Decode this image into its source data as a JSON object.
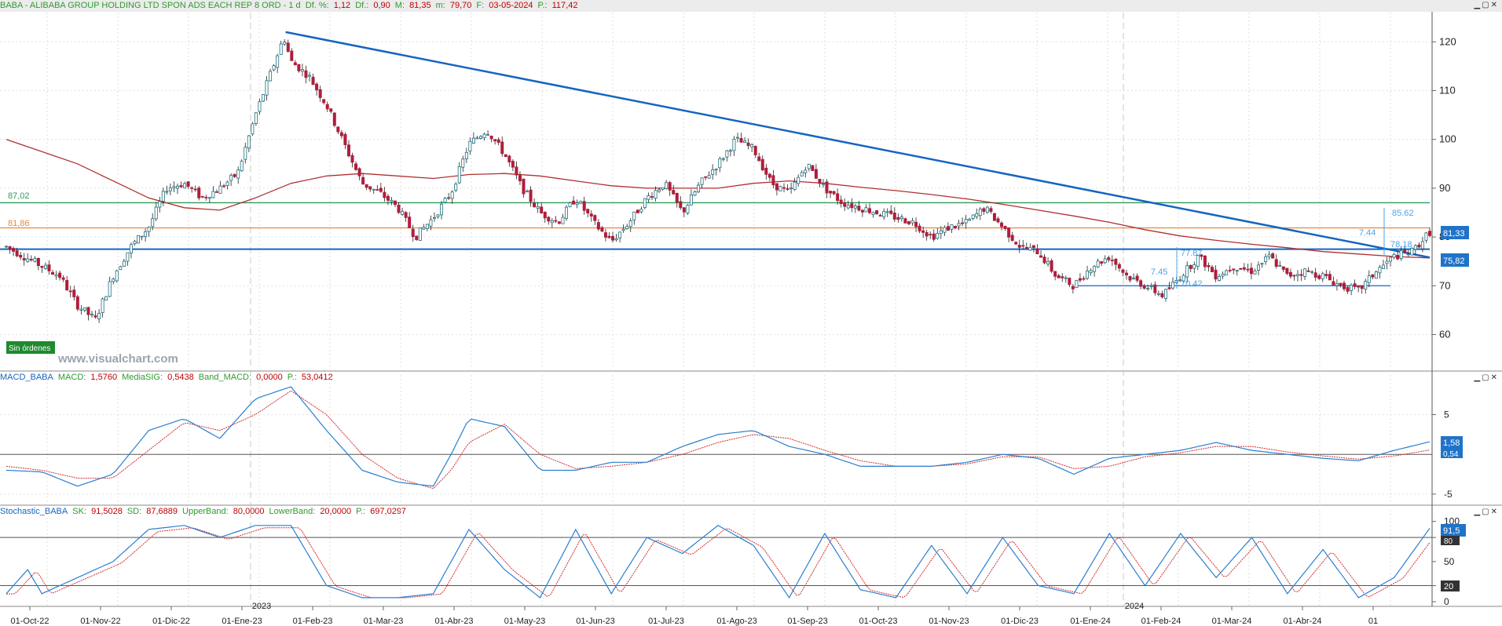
{
  "main_panel": {
    "header": {
      "symbol": "BABA - ALIBABA GROUP HOLDING LTD SPON ADS EACH REP 8 ORD - 1 d",
      "items": [
        {
          "label": "Df. %:",
          "value": "1,12"
        },
        {
          "label": "Df.:",
          "value": "0,90"
        },
        {
          "label": "M:",
          "value": "81,35"
        },
        {
          "label": "m:",
          "value": "79,70"
        },
        {
          "label": "F:",
          "value": "03-05-2024"
        },
        {
          "label": "P.:",
          "value": "117,42"
        }
      ]
    },
    "orders_badge": "Sin órdenes",
    "watermark": "www.visualchart.com",
    "y_ticks": [
      "120",
      "110",
      "100",
      "90",
      "80",
      "70",
      "60"
    ],
    "levels": {
      "green": "87,02",
      "orange": "81,86"
    },
    "price_tags": {
      "last": "81,33",
      "blue_line": "75,82"
    },
    "annotations": [
      "85.62",
      "7.44",
      "78.18",
      "77.87",
      "7.45",
      "70.42"
    ],
    "window_controls": [
      "minimize-icon",
      "restore-icon",
      "close-icon"
    ]
  },
  "macd_panel": {
    "header": {
      "name": "MACD_BABA",
      "items": [
        {
          "label": "MACD:",
          "value": "1,5760"
        },
        {
          "label": "MediaSIG:",
          "value": "0,5438"
        },
        {
          "label": "Band_MACD:",
          "value": "0,0000"
        },
        {
          "label": "P.:",
          "value": "53,0412"
        }
      ]
    },
    "y_ticks": [
      "5",
      "-5"
    ],
    "tags": {
      "macd": "1,58",
      "signal": "0,54"
    }
  },
  "stoch_panel": {
    "header": {
      "name": "Stochastic_BABA",
      "items": [
        {
          "label": "SK:",
          "value": "91,5028"
        },
        {
          "label": "SD:",
          "value": "87,6889"
        },
        {
          "label": "UpperBand:",
          "value": "80,0000"
        },
        {
          "label": "LowerBand:",
          "value": "20,0000"
        },
        {
          "label": "P.:",
          "value": "697,0297"
        }
      ]
    },
    "y_ticks": [
      "100",
      "80",
      "50",
      "20",
      "0"
    ],
    "tags": {
      "sk": "91,5",
      "upper": "80",
      "lower": "20"
    }
  },
  "x_axis": {
    "labels": [
      "01-Oct-22",
      "01-Nov-22",
      "01-Dic-22",
      "01-Ene-23",
      "01-Feb-23",
      "01-Mar-23",
      "01-Abr-23",
      "01-May-23",
      "01-Jun-23",
      "01-Jul-23",
      "01-Ago-23",
      "01-Sep-23",
      "01-Oct-23",
      "01-Nov-23",
      "01-Dic-23",
      "01-Ene-24",
      "01-Feb-24",
      "01-Mar-24",
      "01-Abr-24",
      "01"
    ],
    "years": [
      "2023",
      "2024"
    ]
  },
  "colors": {
    "background": "#ffffff",
    "bull_candle": "#1f6f7f",
    "bear_candle": "#b01d3c",
    "trendline": "#1565c0",
    "ma": "#b03030",
    "green_level": "#2e9c5a",
    "orange_level": "#e28a3c",
    "support": "#1565c0",
    "macd_line": "#2a7fd0",
    "signal_line": "#d03030",
    "header_bar": "#dcdcdc",
    "header_text": "#2e9c2e",
    "header_value": "#c00000"
  },
  "chart_data": {
    "type": "candlestick",
    "title": "BABA - ALIBABA GROUP HOLDING LTD SPON ADS EACH REP 8 ORD - 1 d",
    "ylim": [
      53,
      126
    ],
    "price_path": [
      [
        0,
        78
      ],
      [
        0.5,
        76
      ],
      [
        1,
        74
      ],
      [
        1.5,
        72
      ],
      [
        2,
        66
      ],
      [
        2.5,
        63
      ],
      [
        3,
        72
      ],
      [
        3.5,
        78
      ],
      [
        4,
        82
      ],
      [
        4.5,
        90
      ],
      [
        5,
        91
      ],
      [
        5.5,
        88
      ],
      [
        6,
        90
      ],
      [
        6.5,
        93
      ],
      [
        7,
        105
      ],
      [
        7.5,
        115
      ],
      [
        7.8,
        121
      ],
      [
        8,
        116
      ],
      [
        8.5,
        113
      ],
      [
        9,
        107
      ],
      [
        9.5,
        99
      ],
      [
        10,
        91
      ],
      [
        10.5,
        89
      ],
      [
        11,
        86
      ],
      [
        11.5,
        80
      ],
      [
        12,
        84
      ],
      [
        12.5,
        89
      ],
      [
        13,
        99
      ],
      [
        13.5,
        102
      ],
      [
        14,
        97
      ],
      [
        14.5,
        90
      ],
      [
        15,
        85
      ],
      [
        15.5,
        83
      ],
      [
        16,
        88
      ],
      [
        16.5,
        83
      ],
      [
        17,
        79
      ],
      [
        17.5,
        83
      ],
      [
        18,
        88
      ],
      [
        18.5,
        91
      ],
      [
        19,
        85
      ],
      [
        19.5,
        91
      ],
      [
        20,
        95
      ],
      [
        20.5,
        100
      ],
      [
        21,
        98
      ],
      [
        21.5,
        91
      ],
      [
        22,
        89
      ],
      [
        22.5,
        95
      ],
      [
        23,
        90
      ],
      [
        23.5,
        87
      ],
      [
        24,
        86
      ],
      [
        24.5,
        85
      ],
      [
        25,
        84
      ],
      [
        25.5,
        83
      ],
      [
        26,
        80
      ],
      [
        26.5,
        82
      ],
      [
        27,
        83
      ],
      [
        27.5,
        86
      ],
      [
        28,
        82
      ],
      [
        28.5,
        78
      ],
      [
        29,
        77
      ],
      [
        29.5,
        72
      ],
      [
        30,
        70
      ],
      [
        30.5,
        74
      ],
      [
        31,
        76
      ],
      [
        31.5,
        72
      ],
      [
        32,
        70
      ],
      [
        32.5,
        68
      ],
      [
        33,
        72
      ],
      [
        33.5,
        76
      ],
      [
        34,
        72
      ],
      [
        34.5,
        74
      ],
      [
        35,
        73
      ],
      [
        35.5,
        76
      ],
      [
        36,
        72
      ],
      [
        36.5,
        73
      ],
      [
        37,
        72
      ],
      [
        37.5,
        70
      ],
      [
        38,
        69
      ],
      [
        38.5,
        73
      ],
      [
        39,
        76
      ],
      [
        39.5,
        77
      ],
      [
        40,
        81
      ]
    ],
    "ma_path": [
      [
        0,
        100
      ],
      [
        1,
        97.5
      ],
      [
        2,
        95
      ],
      [
        3,
        91.5
      ],
      [
        4,
        88
      ],
      [
        5,
        86
      ],
      [
        6,
        85.5
      ],
      [
        7,
        88
      ],
      [
        8,
        91
      ],
      [
        9,
        92.5
      ],
      [
        10,
        93
      ],
      [
        11,
        92.5
      ],
      [
        12,
        92
      ],
      [
        13,
        92.8
      ],
      [
        14,
        93
      ],
      [
        15,
        92.5
      ],
      [
        16,
        91.5
      ],
      [
        17,
        90.5
      ],
      [
        18,
        90
      ],
      [
        19,
        90
      ],
      [
        20,
        90
      ],
      [
        21,
        91
      ],
      [
        22,
        91.5
      ],
      [
        23,
        91
      ],
      [
        24,
        90.2
      ],
      [
        25,
        89.5
      ],
      [
        26,
        88.7
      ],
      [
        27,
        87.8
      ],
      [
        28,
        86.7
      ],
      [
        29,
        85.5
      ],
      [
        30,
        84.3
      ],
      [
        31,
        83
      ],
      [
        32,
        81.5
      ],
      [
        33,
        80.2
      ],
      [
        34,
        79.3
      ],
      [
        35,
        78.5
      ],
      [
        36,
        77.8
      ],
      [
        37,
        77
      ],
      [
        38,
        76.5
      ],
      [
        39,
        76
      ],
      [
        40,
        75.7
      ]
    ],
    "trendline": [
      [
        7.85,
        122
      ],
      [
        40,
        75.8
      ]
    ],
    "horizontal_levels": [
      {
        "value": 87.02,
        "role": "green"
      },
      {
        "value": 81.86,
        "role": "orange"
      },
      {
        "value": 77.5,
        "role": "support"
      },
      {
        "value": 70.0,
        "role": "range-low"
      }
    ],
    "macd": {
      "y_range": [
        -6,
        9
      ],
      "macd_path": [
        [
          0,
          -2
        ],
        [
          1,
          -2.2
        ],
        [
          2,
          -4
        ],
        [
          3,
          -2.5
        ],
        [
          4,
          3
        ],
        [
          5,
          4.5
        ],
        [
          6,
          2
        ],
        [
          7,
          7
        ],
        [
          8,
          8.5
        ],
        [
          9,
          3
        ],
        [
          10,
          -2
        ],
        [
          11,
          -3.5
        ],
        [
          12,
          -4
        ],
        [
          12.5,
          0
        ],
        [
          13,
          4.5
        ],
        [
          14,
          3.5
        ],
        [
          15,
          -2
        ],
        [
          16,
          -2
        ],
        [
          17,
          -1
        ],
        [
          18,
          -1
        ],
        [
          19,
          1
        ],
        [
          20,
          2.5
        ],
        [
          21,
          3
        ],
        [
          22,
          1
        ],
        [
          23,
          0
        ],
        [
          24,
          -1.5
        ],
        [
          25,
          -1.5
        ],
        [
          26,
          -1.5
        ],
        [
          27,
          -1
        ],
        [
          28,
          0
        ],
        [
          29,
          -0.5
        ],
        [
          30,
          -2.5
        ],
        [
          31,
          -0.5
        ],
        [
          32,
          0
        ],
        [
          33,
          0.5
        ],
        [
          34,
          1.5
        ],
        [
          35,
          0.5
        ],
        [
          36,
          0
        ],
        [
          37,
          -0.5
        ],
        [
          38,
          -0.8
        ],
        [
          39,
          0.5
        ],
        [
          40,
          1.58
        ]
      ],
      "signal_path": [
        [
          0,
          -1.5
        ],
        [
          1,
          -2
        ],
        [
          2,
          -3
        ],
        [
          3,
          -3
        ],
        [
          4,
          0.5
        ],
        [
          5,
          4
        ],
        [
          6,
          3
        ],
        [
          7,
          5
        ],
        [
          8,
          8
        ],
        [
          9,
          5
        ],
        [
          10,
          0
        ],
        [
          11,
          -3
        ],
        [
          12,
          -4.3
        ],
        [
          12.5,
          -2
        ],
        [
          13,
          1.5
        ],
        [
          14,
          3.8
        ],
        [
          15,
          0
        ],
        [
          16,
          -1.8
        ],
        [
          17,
          -1.5
        ],
        [
          18,
          -1
        ],
        [
          19,
          0
        ],
        [
          20,
          1.5
        ],
        [
          21,
          2.5
        ],
        [
          22,
          2
        ],
        [
          23,
          0.5
        ],
        [
          24,
          -0.8
        ],
        [
          25,
          -1.5
        ],
        [
          26,
          -1.5
        ],
        [
          27,
          -1.2
        ],
        [
          28,
          -0.3
        ],
        [
          29,
          -0.3
        ],
        [
          30,
          -1.8
        ],
        [
          31,
          -1.5
        ],
        [
          32,
          -0.3
        ],
        [
          33,
          0.2
        ],
        [
          34,
          1
        ],
        [
          35,
          1
        ],
        [
          36,
          0.3
        ],
        [
          37,
          -0.2
        ],
        [
          38,
          -0.6
        ],
        [
          39,
          -0.2
        ],
        [
          40,
          0.54
        ]
      ]
    },
    "stochastic": {
      "y_range": [
        0,
        100
      ],
      "sk_cycles": [
        [
          0,
          10
        ],
        [
          0.6,
          40
        ],
        [
          1,
          10
        ],
        [
          2,
          30
        ],
        [
          3,
          50
        ],
        [
          4,
          90
        ],
        [
          5,
          95
        ],
        [
          6,
          80
        ],
        [
          7,
          95
        ],
        [
          8,
          95
        ],
        [
          9,
          20
        ],
        [
          10,
          5
        ],
        [
          11,
          5
        ],
        [
          12,
          10
        ],
        [
          13,
          90
        ],
        [
          14,
          40
        ],
        [
          15,
          5
        ],
        [
          16,
          90
        ],
        [
          17,
          10
        ],
        [
          18,
          80
        ],
        [
          19,
          60
        ],
        [
          20,
          95
        ],
        [
          21,
          70
        ],
        [
          22,
          5
        ],
        [
          23,
          85
        ],
        [
          24,
          15
        ],
        [
          25,
          5
        ],
        [
          26,
          70
        ],
        [
          27,
          10
        ],
        [
          28,
          80
        ],
        [
          29,
          20
        ],
        [
          30,
          10
        ],
        [
          31,
          85
        ],
        [
          32,
          20
        ],
        [
          33,
          85
        ],
        [
          34,
          30
        ],
        [
          35,
          80
        ],
        [
          36,
          10
        ],
        [
          37,
          65
        ],
        [
          38,
          5
        ],
        [
          39,
          30
        ],
        [
          40,
          91.5
        ]
      ],
      "sd_value": 87.6889,
      "upper_band": 80,
      "lower_band": 20
    }
  }
}
